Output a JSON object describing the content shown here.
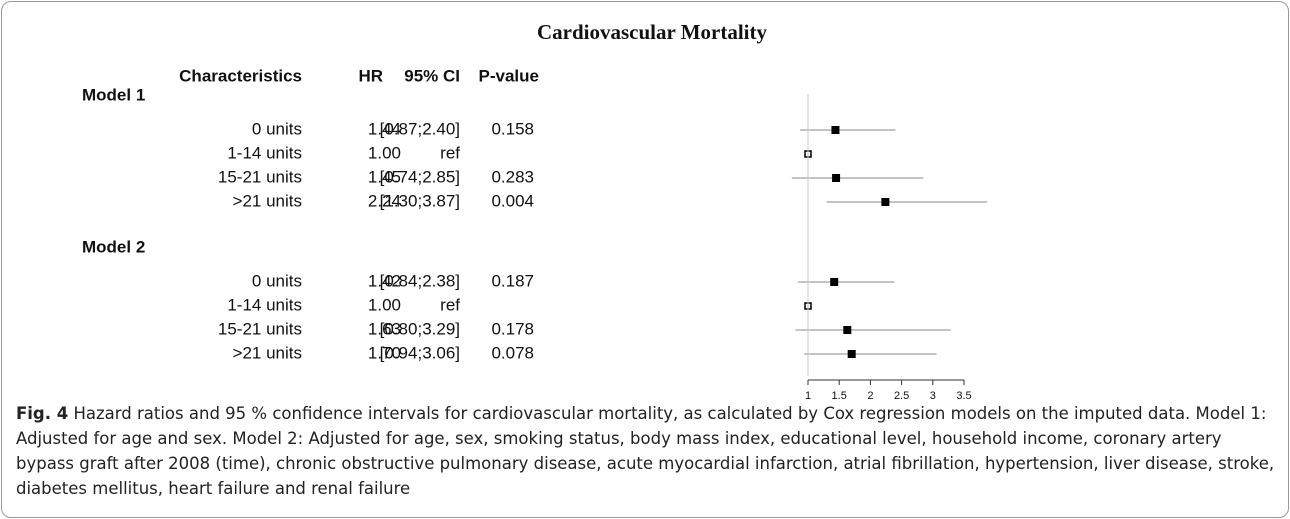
{
  "chart_data": {
    "type": "forest",
    "title": "Cardiovascular Mortality",
    "columns": [
      "Characteristics",
      "HR",
      "95% CI",
      "P-value"
    ],
    "xlim": [
      1,
      3.5
    ],
    "xticks": [
      1,
      1.5,
      2,
      2.5,
      3,
      3.5
    ],
    "reference": 1,
    "marker_color": "#000000",
    "ci_color": "#b0b0b0",
    "series": [
      {
        "name": "Model 1",
        "categories": [
          "0 units",
          "1-14 units",
          "15-21 units",
          ">21 units"
        ],
        "values": [
          1.44,
          1,
          1.45,
          2.24
        ],
        "value_labels": [
          "1.44",
          "1.00",
          "1.45",
          "2.24"
        ],
        "ci_labels": [
          "[0.87;2.40]",
          "ref",
          "[0.74;2.85]",
          "[1.30;3.87]"
        ],
        "lower": [
          0.87,
          null,
          0.74,
          1.3
        ],
        "upper": [
          2.4,
          null,
          2.85,
          3.87
        ],
        "p_values": [
          0.158,
          null,
          0.283,
          0.004
        ]
      },
      {
        "name": "Model 2",
        "categories": [
          "0 units",
          "1-14 units",
          "15-21 units",
          ">21 units"
        ],
        "values": [
          1.42,
          1,
          1.63,
          1.7
        ],
        "value_labels": [
          "1.42",
          "1.00",
          "1.63",
          "1.70"
        ],
        "ci_labels": [
          "[0.84;2.38]",
          "ref",
          "[0.80;3.29]",
          "[0.94;3.06]"
        ],
        "lower": [
          0.84,
          null,
          0.8,
          0.94
        ],
        "upper": [
          2.38,
          null,
          3.29,
          3.06
        ],
        "p_values": [
          0.187,
          null,
          0.178,
          0.078
        ]
      }
    ]
  },
  "caption": {
    "label": "Fig. 4",
    "text": "Hazard ratios and 95 % confidence intervals for cardiovascular mortality, as calculated by Cox regression models on the imputed data. Model 1: Adjusted for age and sex. Model 2: Adjusted for age, sex, smoking status, body mass index, educational level, household income, coronary artery bypass graft after 2008 (time), chronic obstructive pulmonary disease, acute myocardial infarction, atrial fibrillation, hypertension, liver disease, stroke, diabetes mellitus, heart failure and renal failure"
  }
}
